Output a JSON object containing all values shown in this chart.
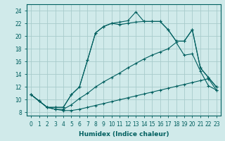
{
  "bg_color": "#d0eaea",
  "grid_color": "#a8cccc",
  "line_color": "#005f5f",
  "xlabel": "Humidex (Indice chaleur)",
  "xlim": [
    -0.5,
    23.5
  ],
  "ylim": [
    7.5,
    25.0
  ],
  "xticks": [
    0,
    1,
    2,
    3,
    4,
    5,
    6,
    7,
    8,
    9,
    10,
    11,
    12,
    13,
    14,
    15,
    16,
    17,
    18,
    19,
    20,
    21,
    22,
    23
  ],
  "yticks": [
    8,
    10,
    12,
    14,
    16,
    18,
    20,
    22,
    24
  ],
  "lines": [
    [
      10.8,
      9.8,
      8.8,
      8.5,
      8.3,
      8.3,
      8.5,
      8.8,
      9.1,
      9.4,
      9.7,
      10.0,
      10.3,
      10.6,
      10.9,
      11.2,
      11.5,
      11.8,
      12.1,
      12.4,
      12.7,
      13.0,
      13.3,
      11.5
    ],
    [
      10.8,
      9.8,
      8.8,
      8.5,
      8.5,
      9.2,
      10.2,
      11.0,
      12.0,
      12.8,
      13.5,
      14.2,
      15.0,
      15.7,
      16.4,
      17.0,
      17.5,
      18.0,
      19.0,
      17.0,
      17.2,
      14.5,
      12.2,
      11.5
    ],
    [
      10.8,
      9.8,
      8.8,
      8.8,
      8.8,
      10.8,
      12.0,
      16.2,
      20.5,
      21.5,
      22.0,
      21.8,
      22.0,
      22.2,
      22.3,
      22.3,
      22.3,
      21.0,
      19.2,
      19.2,
      21.0,
      15.0,
      13.5,
      12.0
    ],
    [
      10.8,
      9.8,
      8.8,
      8.8,
      8.8,
      10.8,
      12.0,
      16.2,
      20.5,
      21.5,
      22.0,
      22.2,
      22.4,
      23.8,
      22.3,
      22.3,
      22.3,
      21.0,
      19.2,
      19.2,
      21.0,
      15.0,
      13.5,
      12.0
    ]
  ]
}
